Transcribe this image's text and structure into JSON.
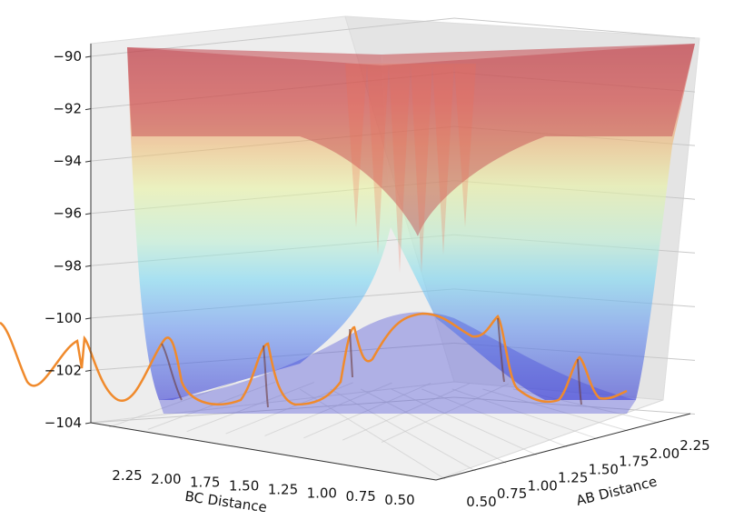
{
  "chart_data": {
    "type": "surface3d",
    "title": "",
    "xlabel": "BC Distance",
    "ylabel": "AB Distance",
    "zlabel": "",
    "z_ticks": [
      "−90",
      "−92",
      "−94",
      "−96",
      "−98",
      "−100",
      "−102",
      "−104"
    ],
    "z_values": [
      -90,
      -92,
      -94,
      -96,
      -98,
      -100,
      -102,
      -104
    ],
    "zlim": [
      -104,
      -89.5
    ],
    "bc_ticks": [
      "2.25",
      "2.00",
      "1.75",
      "1.50",
      "1.25",
      "1.00",
      "0.75",
      "0.50"
    ],
    "bc_values": [
      2.25,
      2.0,
      1.75,
      1.5,
      1.25,
      1.0,
      0.75,
      0.5
    ],
    "ab_ticks": [
      "0.50",
      "0.75",
      "1.00",
      "1.25",
      "1.50",
      "1.75",
      "2.00",
      "2.25"
    ],
    "ab_values": [
      0.5,
      0.75,
      1.0,
      1.25,
      1.5,
      1.75,
      2.0,
      2.25
    ],
    "grid": true,
    "colormap": "jet",
    "trajectory_color": "#f08a2c",
    "surface_alpha": 0.45
  }
}
